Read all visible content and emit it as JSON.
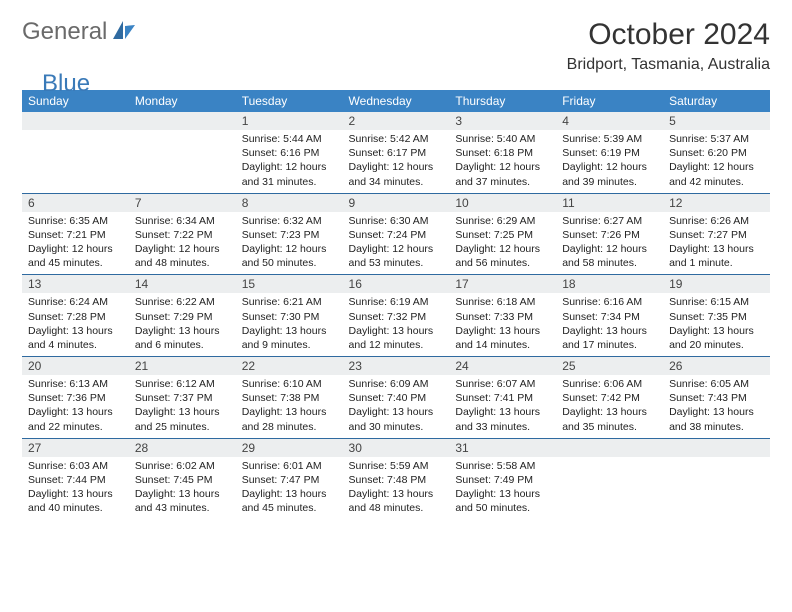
{
  "brand": {
    "word1": "General",
    "word2": "Blue"
  },
  "header": {
    "month": "October 2024",
    "location": "Bridport, Tasmania, Australia"
  },
  "colors": {
    "header_bg": "#3a83c4",
    "rule": "#2f6aa0",
    "daynum_bg": "#eceeef",
    "text": "#222222",
    "bg": "#ffffff"
  },
  "columns": [
    "Sunday",
    "Monday",
    "Tuesday",
    "Wednesday",
    "Thursday",
    "Friday",
    "Saturday"
  ],
  "weeks": [
    [
      {
        "n": "",
        "sr": "",
        "ss": "",
        "dl": ""
      },
      {
        "n": "",
        "sr": "",
        "ss": "",
        "dl": ""
      },
      {
        "n": "1",
        "sr": "Sunrise: 5:44 AM",
        "ss": "Sunset: 6:16 PM",
        "dl": "Daylight: 12 hours and 31 minutes."
      },
      {
        "n": "2",
        "sr": "Sunrise: 5:42 AM",
        "ss": "Sunset: 6:17 PM",
        "dl": "Daylight: 12 hours and 34 minutes."
      },
      {
        "n": "3",
        "sr": "Sunrise: 5:40 AM",
        "ss": "Sunset: 6:18 PM",
        "dl": "Daylight: 12 hours and 37 minutes."
      },
      {
        "n": "4",
        "sr": "Sunrise: 5:39 AM",
        "ss": "Sunset: 6:19 PM",
        "dl": "Daylight: 12 hours and 39 minutes."
      },
      {
        "n": "5",
        "sr": "Sunrise: 5:37 AM",
        "ss": "Sunset: 6:20 PM",
        "dl": "Daylight: 12 hours and 42 minutes."
      }
    ],
    [
      {
        "n": "6",
        "sr": "Sunrise: 6:35 AM",
        "ss": "Sunset: 7:21 PM",
        "dl": "Daylight: 12 hours and 45 minutes."
      },
      {
        "n": "7",
        "sr": "Sunrise: 6:34 AM",
        "ss": "Sunset: 7:22 PM",
        "dl": "Daylight: 12 hours and 48 minutes."
      },
      {
        "n": "8",
        "sr": "Sunrise: 6:32 AM",
        "ss": "Sunset: 7:23 PM",
        "dl": "Daylight: 12 hours and 50 minutes."
      },
      {
        "n": "9",
        "sr": "Sunrise: 6:30 AM",
        "ss": "Sunset: 7:24 PM",
        "dl": "Daylight: 12 hours and 53 minutes."
      },
      {
        "n": "10",
        "sr": "Sunrise: 6:29 AM",
        "ss": "Sunset: 7:25 PM",
        "dl": "Daylight: 12 hours and 56 minutes."
      },
      {
        "n": "11",
        "sr": "Sunrise: 6:27 AM",
        "ss": "Sunset: 7:26 PM",
        "dl": "Daylight: 12 hours and 58 minutes."
      },
      {
        "n": "12",
        "sr": "Sunrise: 6:26 AM",
        "ss": "Sunset: 7:27 PM",
        "dl": "Daylight: 13 hours and 1 minute."
      }
    ],
    [
      {
        "n": "13",
        "sr": "Sunrise: 6:24 AM",
        "ss": "Sunset: 7:28 PM",
        "dl": "Daylight: 13 hours and 4 minutes."
      },
      {
        "n": "14",
        "sr": "Sunrise: 6:22 AM",
        "ss": "Sunset: 7:29 PM",
        "dl": "Daylight: 13 hours and 6 minutes."
      },
      {
        "n": "15",
        "sr": "Sunrise: 6:21 AM",
        "ss": "Sunset: 7:30 PM",
        "dl": "Daylight: 13 hours and 9 minutes."
      },
      {
        "n": "16",
        "sr": "Sunrise: 6:19 AM",
        "ss": "Sunset: 7:32 PM",
        "dl": "Daylight: 13 hours and 12 minutes."
      },
      {
        "n": "17",
        "sr": "Sunrise: 6:18 AM",
        "ss": "Sunset: 7:33 PM",
        "dl": "Daylight: 13 hours and 14 minutes."
      },
      {
        "n": "18",
        "sr": "Sunrise: 6:16 AM",
        "ss": "Sunset: 7:34 PM",
        "dl": "Daylight: 13 hours and 17 minutes."
      },
      {
        "n": "19",
        "sr": "Sunrise: 6:15 AM",
        "ss": "Sunset: 7:35 PM",
        "dl": "Daylight: 13 hours and 20 minutes."
      }
    ],
    [
      {
        "n": "20",
        "sr": "Sunrise: 6:13 AM",
        "ss": "Sunset: 7:36 PM",
        "dl": "Daylight: 13 hours and 22 minutes."
      },
      {
        "n": "21",
        "sr": "Sunrise: 6:12 AM",
        "ss": "Sunset: 7:37 PM",
        "dl": "Daylight: 13 hours and 25 minutes."
      },
      {
        "n": "22",
        "sr": "Sunrise: 6:10 AM",
        "ss": "Sunset: 7:38 PM",
        "dl": "Daylight: 13 hours and 28 minutes."
      },
      {
        "n": "23",
        "sr": "Sunrise: 6:09 AM",
        "ss": "Sunset: 7:40 PM",
        "dl": "Daylight: 13 hours and 30 minutes."
      },
      {
        "n": "24",
        "sr": "Sunrise: 6:07 AM",
        "ss": "Sunset: 7:41 PM",
        "dl": "Daylight: 13 hours and 33 minutes."
      },
      {
        "n": "25",
        "sr": "Sunrise: 6:06 AM",
        "ss": "Sunset: 7:42 PM",
        "dl": "Daylight: 13 hours and 35 minutes."
      },
      {
        "n": "26",
        "sr": "Sunrise: 6:05 AM",
        "ss": "Sunset: 7:43 PM",
        "dl": "Daylight: 13 hours and 38 minutes."
      }
    ],
    [
      {
        "n": "27",
        "sr": "Sunrise: 6:03 AM",
        "ss": "Sunset: 7:44 PM",
        "dl": "Daylight: 13 hours and 40 minutes."
      },
      {
        "n": "28",
        "sr": "Sunrise: 6:02 AM",
        "ss": "Sunset: 7:45 PM",
        "dl": "Daylight: 13 hours and 43 minutes."
      },
      {
        "n": "29",
        "sr": "Sunrise: 6:01 AM",
        "ss": "Sunset: 7:47 PM",
        "dl": "Daylight: 13 hours and 45 minutes."
      },
      {
        "n": "30",
        "sr": "Sunrise: 5:59 AM",
        "ss": "Sunset: 7:48 PM",
        "dl": "Daylight: 13 hours and 48 minutes."
      },
      {
        "n": "31",
        "sr": "Sunrise: 5:58 AM",
        "ss": "Sunset: 7:49 PM",
        "dl": "Daylight: 13 hours and 50 minutes."
      },
      {
        "n": "",
        "sr": "",
        "ss": "",
        "dl": ""
      },
      {
        "n": "",
        "sr": "",
        "ss": "",
        "dl": ""
      }
    ]
  ]
}
